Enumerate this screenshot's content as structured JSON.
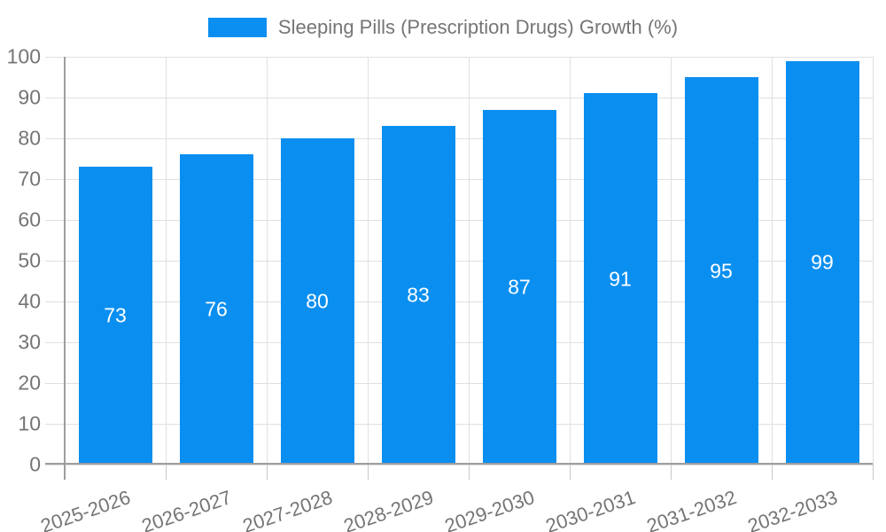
{
  "legend": {
    "label": "Sleeping Pills (Prescription Drugs) Growth (%)"
  },
  "chart_data": {
    "type": "bar",
    "title": "Sleeping Pills (Prescription Drugs) Growth (%)",
    "categories": [
      "2025-2026",
      "2026-2027",
      "2027-2028",
      "2028-2029",
      "2029-2030",
      "2030-2031",
      "2031-2032",
      "2032-2033"
    ],
    "values": [
      73,
      76,
      80,
      83,
      87,
      91,
      95,
      99
    ],
    "xlabel": "",
    "ylabel": "",
    "ylim": [
      0,
      100
    ],
    "yticks": [
      0,
      10,
      20,
      30,
      40,
      50,
      60,
      70,
      80,
      90,
      100
    ],
    "grid": true,
    "legend_position": "top",
    "value_labels": "inside-center"
  },
  "colors": {
    "bar": "#0a8ff0",
    "gridline": "#e0e0e0",
    "axis": "#9e9e9e",
    "tick": "#c8c8c8",
    "axis_text": "#757575",
    "value_text": "#ffffff",
    "background": "#ffffff"
  }
}
